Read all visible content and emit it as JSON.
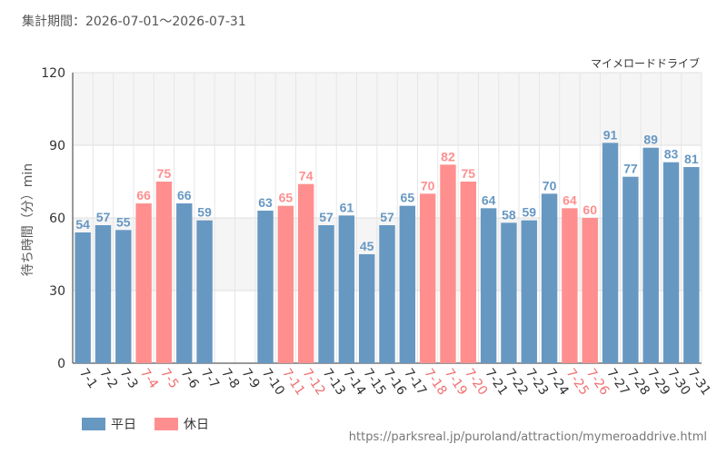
{
  "period_label": "集計期間：2026-07-01〜2026-07-31",
  "source_url": "https://parksreal.jp/puroland/attraction/mymeroaddrive.html",
  "colors": {
    "weekday": "#6798c2",
    "holiday": "#ff8f8f",
    "axis_text": "#333333",
    "holiday_tick": "#f07070"
  },
  "chart_data": {
    "type": "bar",
    "title": "マイメロードドライブ",
    "xlabel": "",
    "ylabel": "待ち時間（分）min",
    "ylim": [
      0,
      120
    ],
    "yticks": [
      0,
      30,
      60,
      90,
      120
    ],
    "grid": true,
    "legend_position": "bottom-left",
    "legend": [
      {
        "key": "weekday",
        "label": "平日"
      },
      {
        "key": "holiday",
        "label": "休日"
      }
    ],
    "categories": [
      "7-1",
      "7-2",
      "7-3",
      "7-4",
      "7-5",
      "7-6",
      "7-7",
      "7-8",
      "7-9",
      "7-10",
      "7-11",
      "7-12",
      "7-13",
      "7-14",
      "7-15",
      "7-16",
      "7-17",
      "7-18",
      "7-19",
      "7-20",
      "7-21",
      "7-22",
      "7-23",
      "7-24",
      "7-25",
      "7-26",
      "7-27",
      "7-28",
      "7-29",
      "7-30",
      "7-31"
    ],
    "values": [
      54,
      57,
      55,
      66,
      75,
      66,
      59,
      null,
      null,
      63,
      65,
      74,
      57,
      61,
      45,
      57,
      65,
      70,
      82,
      75,
      64,
      58,
      59,
      70,
      64,
      60,
      91,
      77,
      89,
      83,
      81
    ],
    "day_type": [
      "weekday",
      "weekday",
      "weekday",
      "holiday",
      "holiday",
      "weekday",
      "weekday",
      "weekday",
      "weekday",
      "weekday",
      "holiday",
      "holiday",
      "weekday",
      "weekday",
      "weekday",
      "weekday",
      "weekday",
      "holiday",
      "holiday",
      "holiday",
      "weekday",
      "weekday",
      "weekday",
      "weekday",
      "holiday",
      "holiday",
      "weekday",
      "weekday",
      "weekday",
      "weekday",
      "weekday"
    ]
  }
}
